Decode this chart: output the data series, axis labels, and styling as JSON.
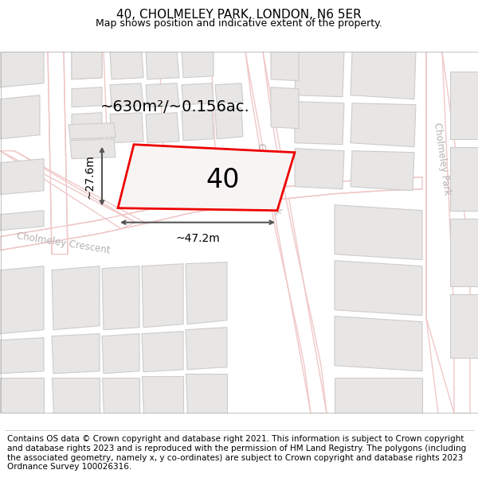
{
  "title": "40, CHOLMELEY PARK, LONDON, N6 5ER",
  "subtitle": "Map shows position and indicative extent of the property.",
  "footer": "Contains OS data © Crown copyright and database right 2021. This information is subject to Crown copyright and database rights 2023 and is reproduced with the permission of HM Land Registry. The polygons (including the associated geometry, namely x, y co-ordinates) are subject to Crown copyright and database rights 2023 Ordnance Survey 100026316.",
  "area_text": "~630m²/~0.156ac.",
  "property_number": "40",
  "dim_width": "~47.2m",
  "dim_height": "~27.6m",
  "map_bg": "#f9f7f5",
  "road_line_color": "#f0c8c8",
  "building_fill": "#e8e6e4",
  "building_edge": "#cccccc",
  "prop_fill": "#f5f0f0",
  "prop_edge": "#ee0000",
  "street_label_color": "#b8b0b0",
  "dim_color": "#555555",
  "title_fontsize": 11,
  "subtitle_fontsize": 9,
  "footer_fontsize": 7.5,
  "area_fontsize": 14,
  "prop_label_fontsize": 24,
  "dim_fontsize": 10,
  "street_fontsize": 8.5
}
